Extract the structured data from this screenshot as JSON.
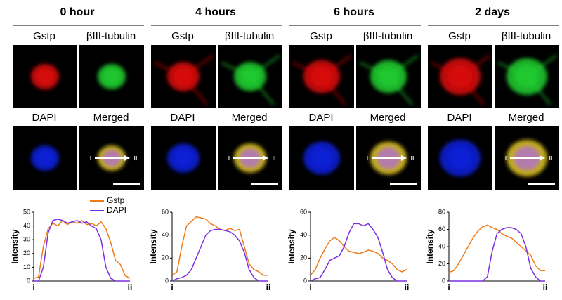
{
  "panels": [
    {
      "title": "0 hour",
      "labels": [
        "Gstp",
        "βIII-tubulin",
        "DAPI",
        "Merged"
      ],
      "arrow": [
        "i",
        "ii"
      ]
    },
    {
      "title": "4 hours",
      "labels": [
        "Gstp",
        "βIII-tubulin",
        "DAPI",
        "Merged"
      ],
      "arrow": [
        "i",
        "ii"
      ]
    },
    {
      "title": "6 hours",
      "labels": [
        "Gstp",
        "βIII-tubulin",
        "DAPI",
        "Merged"
      ],
      "arrow": [
        "i",
        "ii"
      ]
    },
    {
      "title": "2 days",
      "labels": [
        "Gstp",
        "βIII-tubulin",
        "DAPI",
        "Merged"
      ],
      "arrow": [
        "i",
        "ii"
      ]
    }
  ],
  "chart_data": [
    {
      "type": "line",
      "ylabel": "Intensity",
      "xstart": "i",
      "xend": "ii",
      "ylim": [
        0,
        50
      ],
      "yticks": [
        0,
        10,
        20,
        30,
        40,
        50
      ],
      "legend": "top-right",
      "series": [
        {
          "name": "Gstp",
          "color": "#f07a1a",
          "values": [
            2,
            3,
            25,
            38,
            42,
            40,
            44,
            41,
            43,
            42,
            44,
            41,
            42,
            40,
            43,
            38,
            28,
            15,
            12,
            4,
            2
          ]
        },
        {
          "name": "DAPI",
          "color": "#7b2fe0",
          "values": [
            0,
            0,
            10,
            35,
            44,
            45,
            44,
            42,
            43,
            44,
            42,
            43,
            40,
            38,
            30,
            10,
            2,
            0,
            0,
            0,
            0
          ]
        }
      ]
    },
    {
      "type": "line",
      "ylabel": "Intensity",
      "xstart": "i",
      "xend": "ii",
      "ylim": [
        0,
        60
      ],
      "yticks": [
        0,
        20,
        40,
        60
      ],
      "series": [
        {
          "color": "#f07a1a",
          "values": [
            5,
            8,
            30,
            48,
            52,
            56,
            55,
            54,
            50,
            48,
            45,
            44,
            46,
            44,
            45,
            30,
            15,
            10,
            8,
            5,
            5
          ]
        },
        {
          "color": "#7b2fe0",
          "values": [
            0,
            2,
            3,
            5,
            10,
            20,
            30,
            40,
            44,
            45,
            45,
            44,
            43,
            40,
            35,
            25,
            10,
            3,
            0,
            0,
            0
          ]
        }
      ]
    },
    {
      "type": "line",
      "ylabel": "Intensity",
      "xstart": "i",
      "xend": "ii",
      "ylim": [
        0,
        60
      ],
      "yticks": [
        0,
        20,
        40,
        60
      ],
      "series": [
        {
          "color": "#f07a1a",
          "values": [
            5,
            10,
            20,
            28,
            35,
            38,
            35,
            30,
            26,
            25,
            24,
            25,
            27,
            26,
            24,
            20,
            18,
            15,
            10,
            8,
            10
          ]
        },
        {
          "color": "#7b2fe0",
          "values": [
            0,
            2,
            3,
            10,
            18,
            20,
            22,
            30,
            42,
            50,
            50,
            48,
            50,
            45,
            38,
            25,
            10,
            3,
            0,
            0,
            0
          ]
        }
      ]
    },
    {
      "type": "line",
      "ylabel": "Intensity",
      "xstart": "i",
      "xend": "ii",
      "ylim": [
        0,
        80
      ],
      "yticks": [
        0,
        20,
        40,
        60,
        80
      ],
      "series": [
        {
          "color": "#f07a1a",
          "values": [
            10,
            12,
            20,
            30,
            40,
            50,
            58,
            63,
            65,
            62,
            60,
            55,
            52,
            50,
            45,
            40,
            35,
            30,
            18,
            12,
            12
          ]
        },
        {
          "color": "#7b2fe0",
          "values": [
            0,
            0,
            0,
            0,
            0,
            0,
            0,
            0,
            5,
            35,
            55,
            60,
            62,
            62,
            60,
            55,
            40,
            15,
            5,
            0,
            0
          ]
        }
      ]
    }
  ]
}
